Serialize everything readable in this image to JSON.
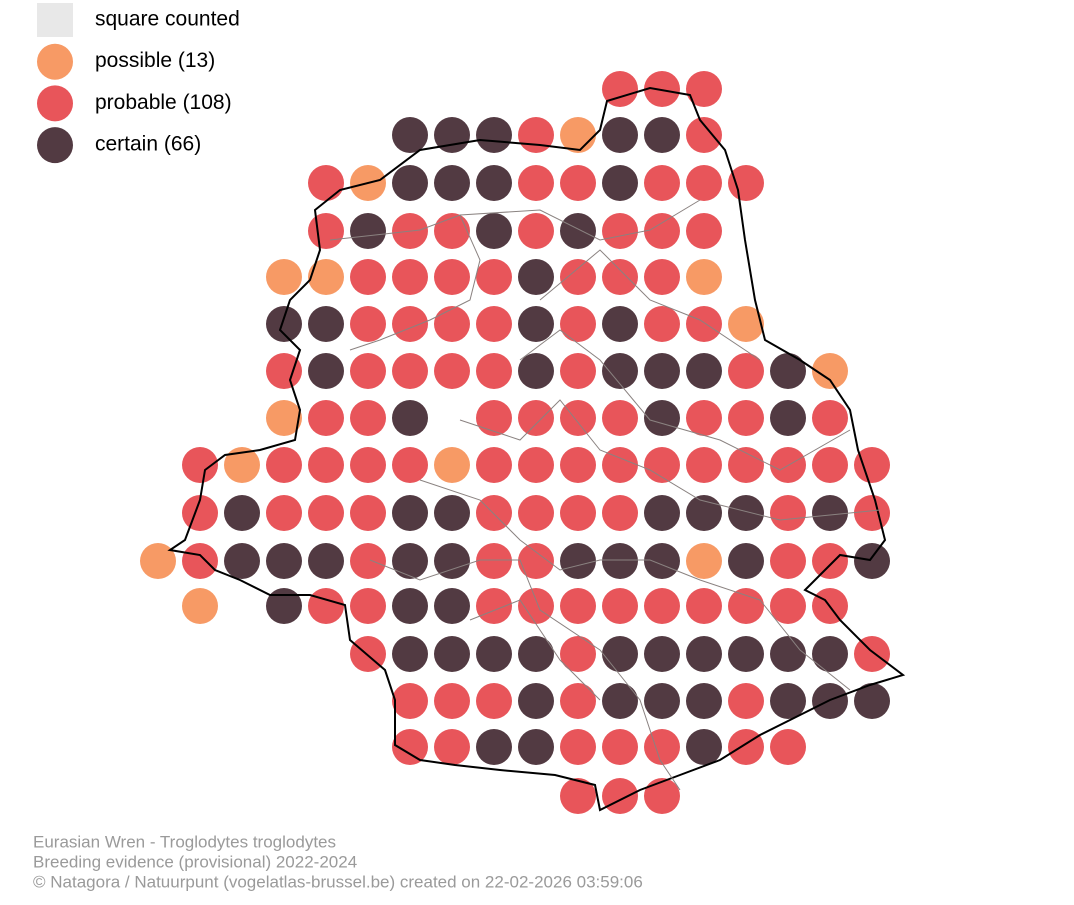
{
  "legend": {
    "items": [
      {
        "label": "square counted",
        "color": "#e8e8e8"
      },
      {
        "label": "possible (13)",
        "color": "#f79a65"
      },
      {
        "label": "probable (108)",
        "color": "#e8555a"
      },
      {
        "label": "certain (66)",
        "color": "#523a42"
      }
    ]
  },
  "footer": {
    "lines": [
      "Eurasian Wren - Troglodytes troglodytes",
      "Breeding evidence (provisional) 2022-2024",
      "© Natagora / Natuurpunt (vogelatlas-brussel.be) created on 22-02-2026 03:59:06"
    ]
  }
}
